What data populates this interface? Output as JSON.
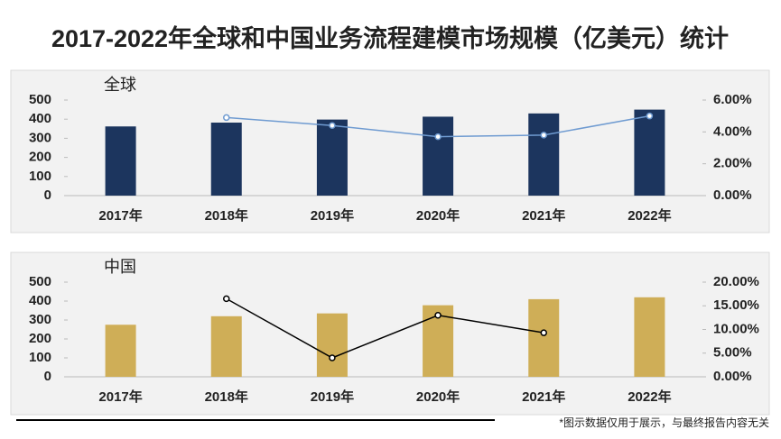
{
  "title": "2017-2022年全球和中国业务流程建模市场规模（亿美元）统计",
  "footnote": "*图示数据仅用于展示，与最终报告内容无关",
  "chart_data": [
    {
      "type": "bar",
      "title": "全球",
      "categories": [
        "2017年",
        "2018年",
        "2019年",
        "2020年",
        "2021年",
        "2022年"
      ],
      "series": [
        {
          "color": "#1c355e",
          "values": [
            362,
            382,
            398,
            413,
            430,
            450
          ]
        },
        {
          "type": "line",
          "axis": "y2",
          "color": "#6f9bd1",
          "values": [
            null,
            4.9,
            4.4,
            3.7,
            3.8,
            5.0
          ]
        }
      ],
      "ylim": [
        0,
        500
      ],
      "yticks": [
        0,
        100,
        200,
        300,
        400,
        500
      ],
      "y2lim": [
        0,
        6
      ],
      "y2ticks": [
        {
          "value": 0,
          "label": "0.00%"
        },
        {
          "value": 2,
          "label": "2.00%"
        },
        {
          "value": 4,
          "label": "4.00%"
        },
        {
          "value": 6,
          "label": "6.00%"
        }
      ]
    },
    {
      "type": "bar",
      "title": "中国",
      "categories": [
        "2017年",
        "2018年",
        "2019年",
        "2020年",
        "2021年",
        "2022年"
      ],
      "series": [
        {
          "color": "#cfae57",
          "values": [
            275,
            320,
            335,
            378,
            410,
            420
          ]
        },
        {
          "type": "line",
          "axis": "y2",
          "color": "#000000",
          "values": [
            null,
            16.5,
            4.0,
            13.0,
            9.3,
            null
          ]
        }
      ],
      "ylim": [
        0,
        500
      ],
      "yticks": [
        0,
        100,
        200,
        300,
        400,
        500
      ],
      "y2lim": [
        0,
        20
      ],
      "y2ticks": [
        {
          "value": 0,
          "label": "0.00%"
        },
        {
          "value": 5,
          "label": "5.00%"
        },
        {
          "value": 10,
          "label": "10.00%"
        },
        {
          "value": 15,
          "label": "15.00%"
        },
        {
          "value": 20,
          "label": "20.00%"
        }
      ]
    }
  ]
}
